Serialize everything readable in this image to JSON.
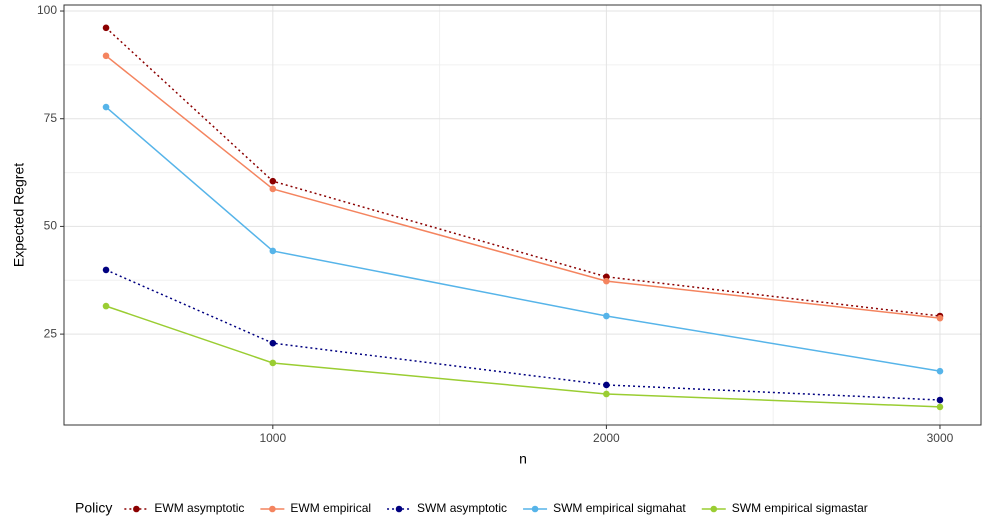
{
  "chart_data": {
    "type": "line",
    "x_label": "n",
    "y_label": "Expected Regret",
    "x": [
      500,
      1000,
      2000,
      3000
    ],
    "series": [
      {
        "name": "EWM asymptotic",
        "color": "#8b0000",
        "linestyle": "dotted",
        "values": [
          96.1,
          60.5,
          38.3,
          29.2
        ]
      },
      {
        "name": "EWM empirical",
        "color": "#f4845f",
        "linestyle": "solid",
        "values": [
          89.6,
          58.7,
          37.3,
          28.7
        ]
      },
      {
        "name": "SWM asymptotic",
        "color": "#000080",
        "linestyle": "dotted",
        "values": [
          39.9,
          22.9,
          13.2,
          9.7
        ]
      },
      {
        "name": "SWM empirical sigmahat",
        "color": "#56b4e9",
        "linestyle": "solid",
        "values": [
          77.7,
          44.3,
          29.2,
          16.4
        ]
      },
      {
        "name": "SWM empirical sigmastar",
        "color": "#9acd32",
        "linestyle": "solid",
        "values": [
          31.5,
          18.3,
          11.1,
          8.1
        ]
      }
    ],
    "xlim": [
      374,
      3123
    ],
    "xticks": [
      1000,
      2000,
      3000
    ],
    "ylim": [
      3.9,
      101.4
    ],
    "yticks": [
      25,
      50,
      75,
      100
    ],
    "grid": true,
    "legend_title": "Policy",
    "legend_position": "bottom"
  }
}
